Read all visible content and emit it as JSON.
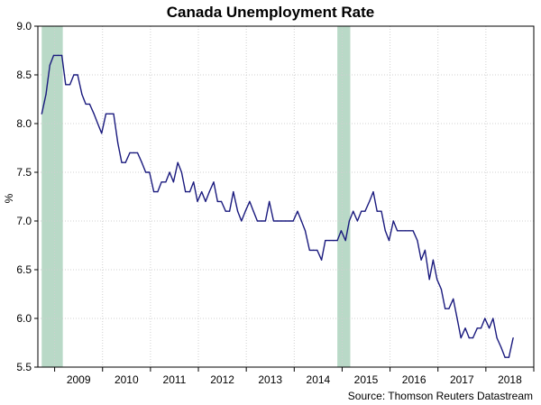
{
  "chart_data": {
    "type": "line",
    "title": "Canada Unemployment Rate",
    "ylabel": "%",
    "source": "Source: Thomson Reuters Datastream",
    "ylim": [
      5.5,
      9.0
    ],
    "xlim": [
      2008.65,
      2019.0
    ],
    "yticks": [
      5.5,
      6.0,
      6.5,
      7.0,
      7.5,
      8.0,
      8.5,
      9.0
    ],
    "ytick_labels": [
      "5.5",
      "6.0",
      "6.5",
      "7.0",
      "7.5",
      "8.0",
      "8.5",
      "9.0"
    ],
    "xtick_labels": [
      "2009",
      "2010",
      "2011",
      "2012",
      "2013",
      "2014",
      "2015",
      "2016",
      "2017",
      "2018"
    ],
    "grid": true,
    "line_color": "#1a1a7e",
    "shade_color": "#b9d9c7",
    "shaded_periods": [
      [
        2008.73,
        2009.17
      ],
      [
        2014.9,
        2015.17
      ]
    ],
    "series": [
      {
        "values": [
          [
            2008.73,
            8.1
          ],
          [
            2008.82,
            8.3
          ],
          [
            2008.9,
            8.6
          ],
          [
            2008.98,
            8.7
          ],
          [
            2009.07,
            8.7
          ],
          [
            2009.15,
            8.7
          ],
          [
            2009.23,
            8.4
          ],
          [
            2009.32,
            8.4
          ],
          [
            2009.4,
            8.5
          ],
          [
            2009.48,
            8.5
          ],
          [
            2009.57,
            8.3
          ],
          [
            2009.65,
            8.2
          ],
          [
            2009.73,
            8.2
          ],
          [
            2009.82,
            8.1
          ],
          [
            2009.9,
            8.0
          ],
          [
            2009.98,
            7.9
          ],
          [
            2010.07,
            8.1
          ],
          [
            2010.15,
            8.1
          ],
          [
            2010.23,
            8.1
          ],
          [
            2010.32,
            7.8
          ],
          [
            2010.4,
            7.6
          ],
          [
            2010.48,
            7.6
          ],
          [
            2010.57,
            7.7
          ],
          [
            2010.65,
            7.7
          ],
          [
            2010.73,
            7.7
          ],
          [
            2010.82,
            7.6
          ],
          [
            2010.9,
            7.5
          ],
          [
            2010.98,
            7.5
          ],
          [
            2011.07,
            7.3
          ],
          [
            2011.15,
            7.3
          ],
          [
            2011.23,
            7.4
          ],
          [
            2011.32,
            7.4
          ],
          [
            2011.4,
            7.5
          ],
          [
            2011.48,
            7.4
          ],
          [
            2011.57,
            7.6
          ],
          [
            2011.65,
            7.5
          ],
          [
            2011.73,
            7.3
          ],
          [
            2011.82,
            7.3
          ],
          [
            2011.9,
            7.4
          ],
          [
            2011.98,
            7.2
          ],
          [
            2012.07,
            7.3
          ],
          [
            2012.15,
            7.2
          ],
          [
            2012.23,
            7.3
          ],
          [
            2012.32,
            7.4
          ],
          [
            2012.4,
            7.2
          ],
          [
            2012.48,
            7.2
          ],
          [
            2012.57,
            7.1
          ],
          [
            2012.65,
            7.1
          ],
          [
            2012.73,
            7.3
          ],
          [
            2012.82,
            7.1
          ],
          [
            2012.9,
            7.0
          ],
          [
            2012.98,
            7.1
          ],
          [
            2013.07,
            7.2
          ],
          [
            2013.15,
            7.1
          ],
          [
            2013.23,
            7.0
          ],
          [
            2013.32,
            7.0
          ],
          [
            2013.4,
            7.0
          ],
          [
            2013.48,
            7.2
          ],
          [
            2013.57,
            7.0
          ],
          [
            2013.65,
            7.0
          ],
          [
            2013.73,
            7.0
          ],
          [
            2013.82,
            7.0
          ],
          [
            2013.9,
            7.0
          ],
          [
            2013.98,
            7.0
          ],
          [
            2014.07,
            7.1
          ],
          [
            2014.15,
            7.0
          ],
          [
            2014.23,
            6.9
          ],
          [
            2014.32,
            6.7
          ],
          [
            2014.4,
            6.7
          ],
          [
            2014.48,
            6.7
          ],
          [
            2014.57,
            6.6
          ],
          [
            2014.65,
            6.8
          ],
          [
            2014.73,
            6.8
          ],
          [
            2014.82,
            6.8
          ],
          [
            2014.9,
            6.8
          ],
          [
            2014.98,
            6.9
          ],
          [
            2015.07,
            6.8
          ],
          [
            2015.15,
            7.0
          ],
          [
            2015.23,
            7.1
          ],
          [
            2015.32,
            7.0
          ],
          [
            2015.4,
            7.1
          ],
          [
            2015.48,
            7.1
          ],
          [
            2015.57,
            7.2
          ],
          [
            2015.65,
            7.3
          ],
          [
            2015.73,
            7.1
          ],
          [
            2015.82,
            7.1
          ],
          [
            2015.9,
            6.9
          ],
          [
            2015.98,
            6.8
          ],
          [
            2016.07,
            7.0
          ],
          [
            2016.15,
            6.9
          ],
          [
            2016.23,
            6.9
          ],
          [
            2016.32,
            6.9
          ],
          [
            2016.4,
            6.9
          ],
          [
            2016.48,
            6.9
          ],
          [
            2016.57,
            6.8
          ],
          [
            2016.65,
            6.6
          ],
          [
            2016.73,
            6.7
          ],
          [
            2016.82,
            6.4
          ],
          [
            2016.9,
            6.6
          ],
          [
            2016.98,
            6.4
          ],
          [
            2017.07,
            6.3
          ],
          [
            2017.15,
            6.1
          ],
          [
            2017.23,
            6.1
          ],
          [
            2017.32,
            6.2
          ],
          [
            2017.4,
            6.0
          ],
          [
            2017.48,
            5.8
          ],
          [
            2017.57,
            5.9
          ],
          [
            2017.65,
            5.8
          ],
          [
            2017.73,
            5.8
          ],
          [
            2017.82,
            5.9
          ],
          [
            2017.9,
            5.9
          ],
          [
            2017.98,
            6.0
          ],
          [
            2018.07,
            5.9
          ],
          [
            2018.15,
            6.0
          ],
          [
            2018.23,
            5.8
          ],
          [
            2018.32,
            5.7
          ],
          [
            2018.4,
            5.6
          ],
          [
            2018.48,
            5.6
          ],
          [
            2018.57,
            5.8
          ]
        ]
      }
    ]
  }
}
